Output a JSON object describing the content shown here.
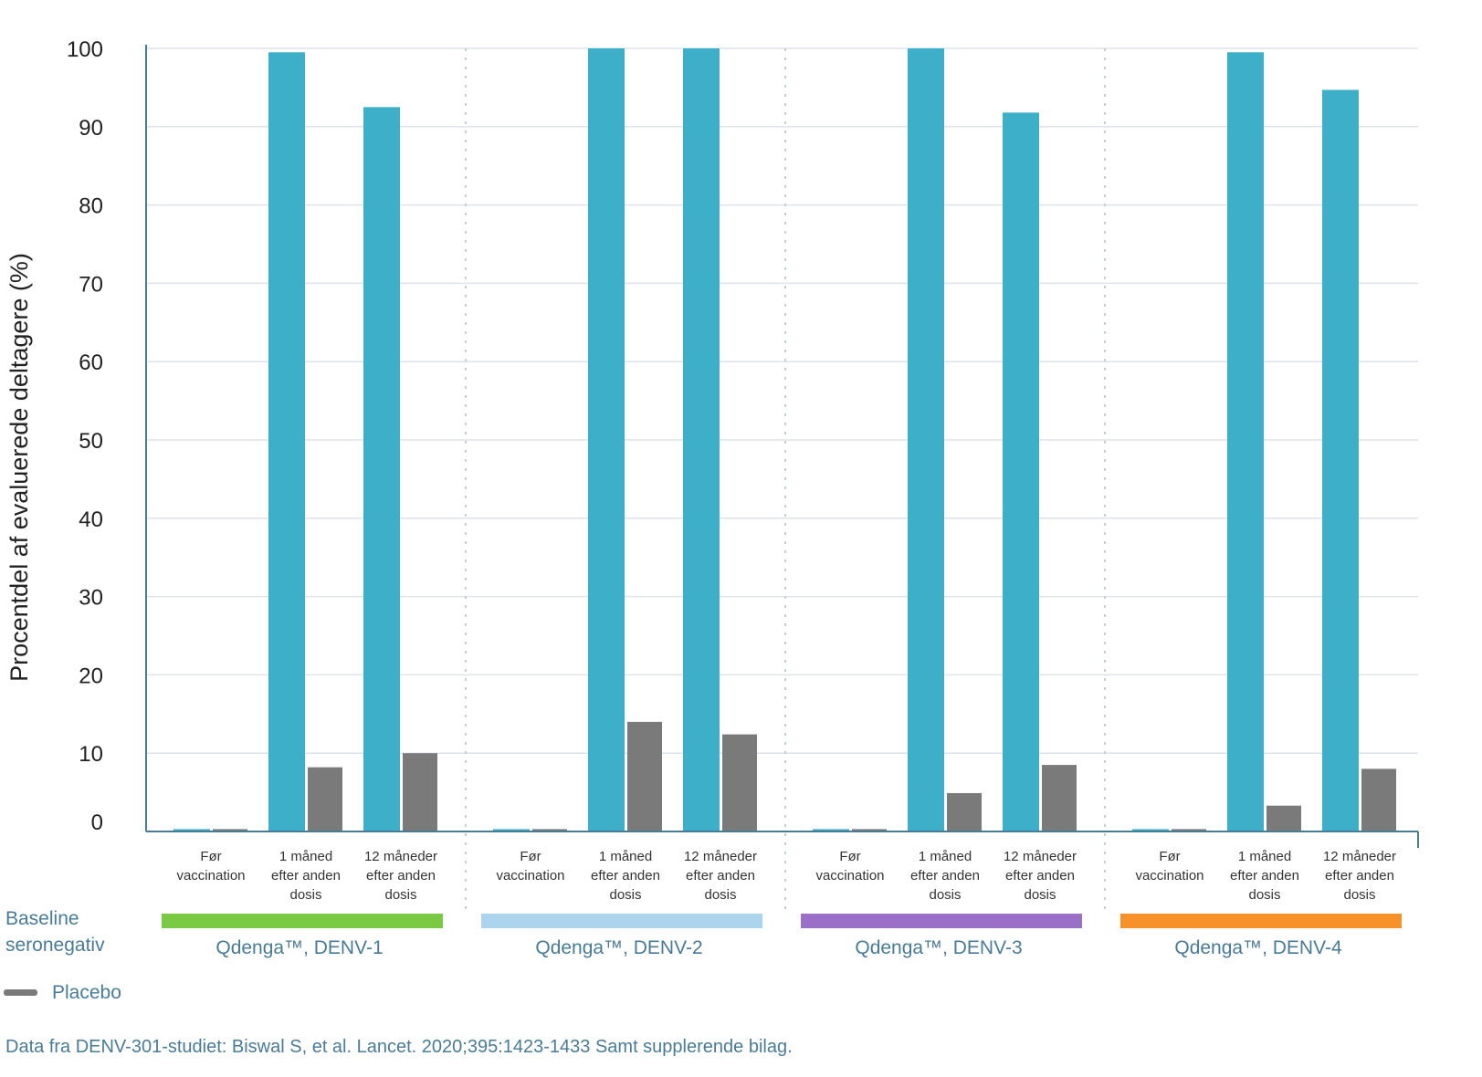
{
  "chart_data": {
    "type": "bar",
    "ylabel": "Procentdel af evaluerede deltagere (%)",
    "yticks": [
      0,
      10,
      20,
      30,
      40,
      50,
      60,
      70,
      80,
      90,
      100
    ],
    "ylim": [
      0,
      100
    ],
    "grid": true,
    "categories": [
      [
        "Før",
        "vaccination"
      ],
      [
        "1 måned",
        "efter anden",
        "dosis"
      ],
      [
        "12 måneder",
        "efter anden",
        "dosis"
      ]
    ],
    "groups": [
      {
        "label": "Qdenga™, DENV-1",
        "color": "#7ac943",
        "qdenga": [
          0.3,
          99.5,
          92.5
        ],
        "placebo": [
          0.3,
          8.2,
          10.0
        ]
      },
      {
        "label": "Qdenga™, DENV-2",
        "color": "#acd4ee",
        "qdenga": [
          0.3,
          100,
          100
        ],
        "placebo": [
          0.3,
          14.0,
          12.4
        ]
      },
      {
        "label": "Qdenga™, DENV-3",
        "color": "#9b6fc8",
        "qdenga": [
          0.3,
          100,
          91.8
        ],
        "placebo": [
          0.3,
          4.9,
          8.5
        ]
      },
      {
        "label": "Qdenga™, DENV-4",
        "color": "#f7922a",
        "qdenga": [
          0.3,
          99.5,
          94.7
        ],
        "placebo": [
          0.3,
          3.3,
          8.0
        ]
      }
    ],
    "series_colors": {
      "qdenga": "#3eafc8",
      "placebo": "#7a7a7a"
    },
    "baseline_label": [
      "Baseline",
      "seronegativ"
    ],
    "legend": {
      "placebo_label": "Placebo",
      "placebo_color": "#7a7a7a"
    }
  },
  "source": "Data fra DENV-301-studiet: Biswal S, et al. Lancet. 2020;395:1423-1433 Samt supplerende bilag."
}
